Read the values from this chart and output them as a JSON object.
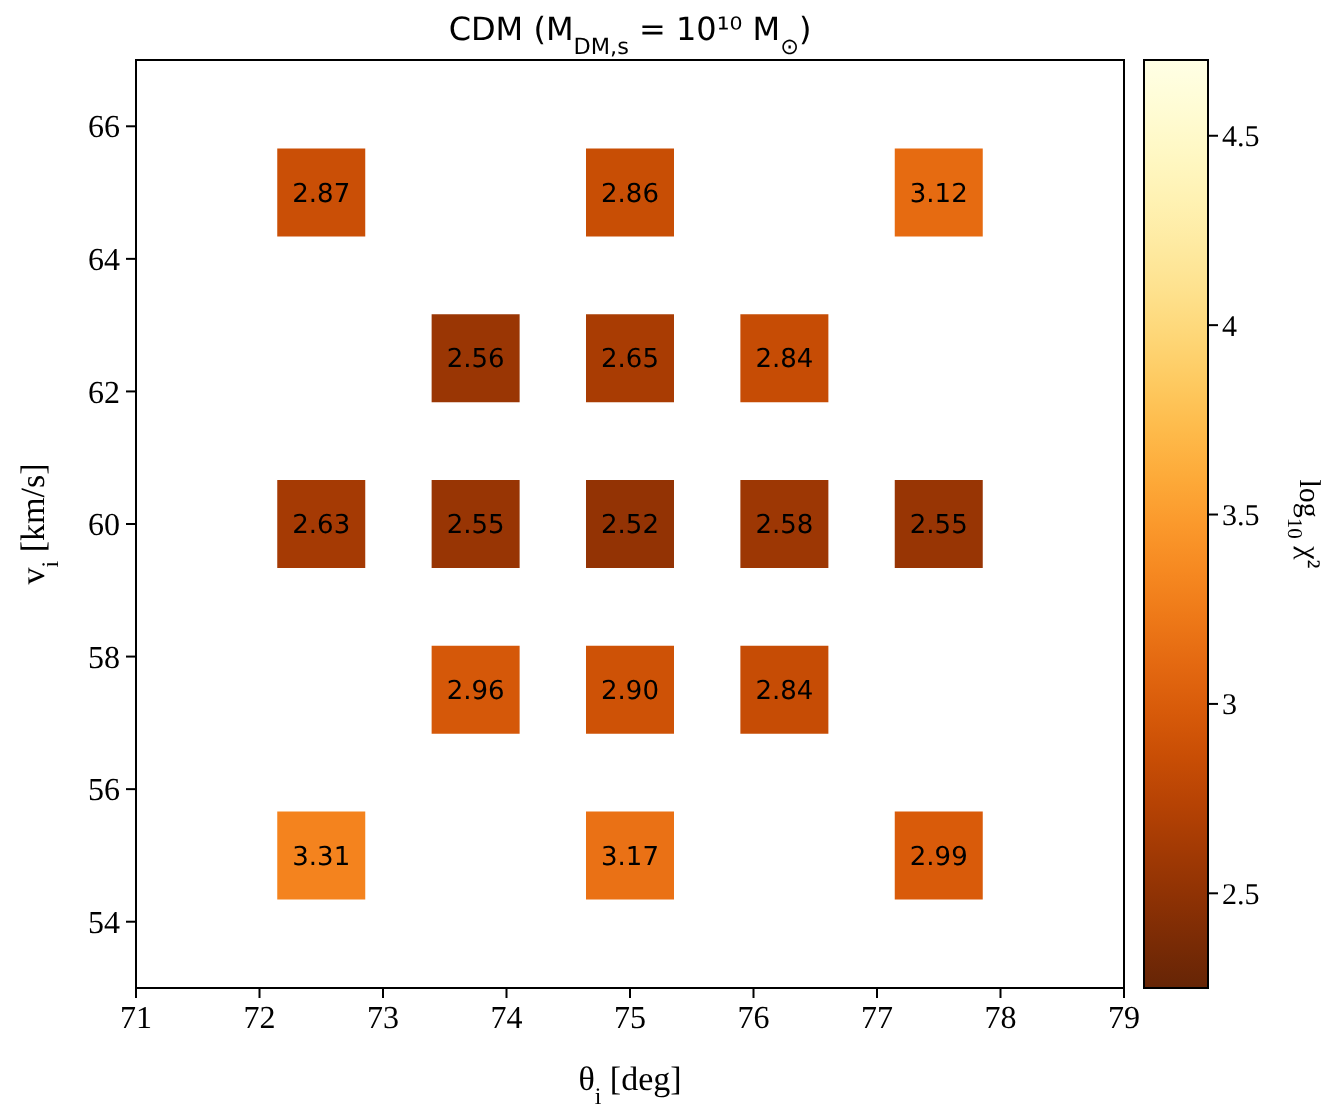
{
  "chart_data": {
    "type": "scatter",
    "title": "CDM (M$_{DM,s}$ = 10¹⁰ M$_{⊙}$)",
    "xlabel": "θ$_{i}$ [deg]",
    "ylabel": "v$_{i}$ [km/s]",
    "clabel": "log$_{10}$ χ²",
    "marker": "square",
    "x": [
      72.5,
      75,
      77.5,
      73.75,
      75,
      76.25,
      72.5,
      73.75,
      75,
      76.25,
      77.5,
      73.75,
      75,
      76.25,
      72.5,
      75,
      77.5
    ],
    "values": [
      65,
      65,
      65,
      62.5,
      62.5,
      62.5,
      60,
      60,
      60,
      60,
      60,
      57.5,
      57.5,
      57.5,
      55,
      55,
      55
    ],
    "cvalues": [
      2.87,
      2.86,
      3.12,
      2.56,
      2.65,
      2.84,
      2.63,
      2.55,
      2.52,
      2.58,
      2.55,
      2.96,
      2.9,
      2.84,
      3.31,
      3.17,
      2.99
    ],
    "annotations": [
      {
        "text": "2.87",
        "x": 72.5,
        "y": 65
      },
      {
        "text": "2.86",
        "x": 75,
        "y": 65
      },
      {
        "text": "3.12",
        "x": 77.5,
        "y": 65
      },
      {
        "text": "2.56",
        "x": 73.75,
        "y": 62.5
      },
      {
        "text": "2.65",
        "x": 75,
        "y": 62.5
      },
      {
        "text": "2.84",
        "x": 76.25,
        "y": 62.5
      },
      {
        "text": "2.63",
        "x": 72.5,
        "y": 60
      },
      {
        "text": "2.55",
        "x": 73.75,
        "y": 60
      },
      {
        "text": "2.52",
        "x": 75,
        "y": 60
      },
      {
        "text": "2.58",
        "x": 76.25,
        "y": 60
      },
      {
        "text": "2.55",
        "x": 77.5,
        "y": 60
      },
      {
        "text": "2.96",
        "x": 73.75,
        "y": 57.5
      },
      {
        "text": "2.90",
        "x": 75,
        "y": 57.5
      },
      {
        "text": "2.84",
        "x": 76.25,
        "y": 57.5
      },
      {
        "text": "3.31",
        "x": 72.5,
        "y": 55
      },
      {
        "text": "3.17",
        "x": 75,
        "y": 55
      },
      {
        "text": "2.99",
        "x": 77.5,
        "y": 55
      }
    ],
    "xlim": [
      71,
      79
    ],
    "ylim": [
      53,
      67
    ],
    "xticks": [
      71,
      72,
      73,
      74,
      75,
      76,
      77,
      78,
      79
    ],
    "yticks": [
      54,
      56,
      58,
      60,
      62,
      64,
      66
    ],
    "clim": [
      2.25,
      4.7
    ],
    "cticks": [
      2.5,
      3.0,
      3.5,
      4.0,
      4.5
    ]
  }
}
